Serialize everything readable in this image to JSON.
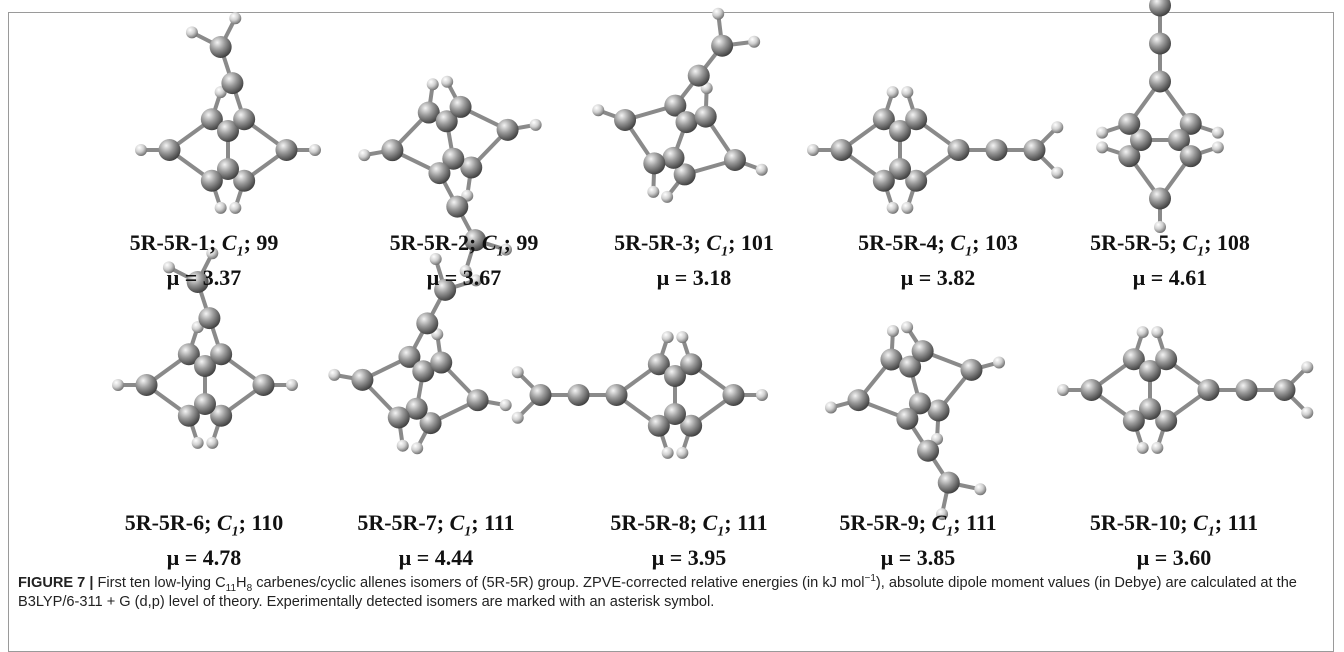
{
  "figure": {
    "panels": [
      {
        "name": "5R-5R-1; ",
        "symbol": "C",
        "subscript": "1",
        "energy": "; 99",
        "dipole": "μ = 3.37"
      },
      {
        "name": "5R-5R-2; ",
        "symbol": "C",
        "subscript": "1",
        "energy": "; 99",
        "dipole": "μ = 3.67"
      },
      {
        "name": "5R-5R-3; ",
        "symbol": "C",
        "subscript": "1",
        "energy": "; 101",
        "dipole": "μ = 3.18"
      },
      {
        "name": "5R-5R-4; ",
        "symbol": "C",
        "subscript": "1",
        "energy": "; 103",
        "dipole": "μ = 3.82"
      },
      {
        "name": "5R-5R-5; ",
        "symbol": "C",
        "subscript": "1",
        "energy": "; 108",
        "dipole": "μ = 4.61"
      },
      {
        "name": "5R-5R-6; ",
        "symbol": "C",
        "subscript": "1",
        "energy": "; 110",
        "dipole": "μ = 4.78"
      },
      {
        "name": "5R-5R-7; ",
        "symbol": "C",
        "subscript": "1",
        "energy": "; 111",
        "dipole": "μ = 4.44"
      },
      {
        "name": "5R-5R-8; ",
        "symbol": "C",
        "subscript": "1",
        "energy": "; 111",
        "dipole": "μ = 3.95"
      },
      {
        "name": "5R-5R-9; ",
        "symbol": "C",
        "subscript": "1",
        "energy": "; 111",
        "dipole": "μ = 3.85"
      },
      {
        "name": "5R-5R-10; ",
        "symbol": "C",
        "subscript": "1",
        "energy": "; 111",
        "dipole": "μ = 3.60"
      }
    ],
    "caption": {
      "label": "FIGURE 7 |",
      "text_1": " First ten low-lying C",
      "sub_1": "11",
      "text_2": "H",
      "sub_2": "8",
      "text_3": " carbenes/cyclic allenes isomers of (5R-5R) group. ZPVE-corrected relative energies (in kJ mol",
      "sup_1": "−1",
      "text_4": "), absolute dipole moment values (in Debye) are calculated at the B3LYP/6-311 + G (d,p) level of theory. Experimentally detected isomers are marked with an asterisk symbol."
    }
  }
}
